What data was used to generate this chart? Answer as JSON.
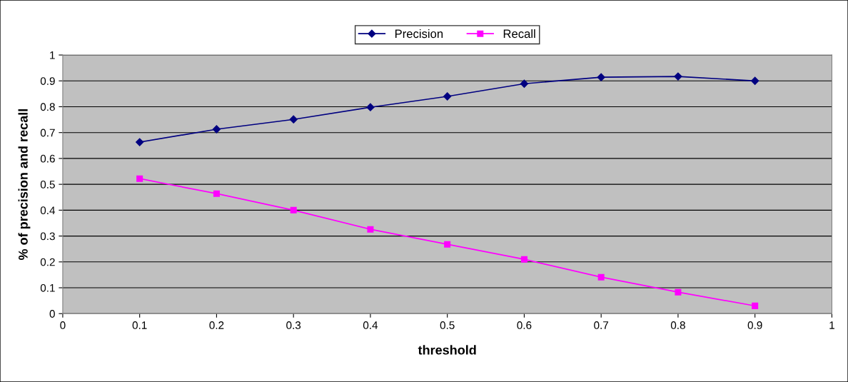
{
  "chart_data": {
    "type": "line",
    "xlabel": "threshold",
    "ylabel": "% of precision and recall",
    "x": [
      0.1,
      0.2,
      0.3,
      0.4,
      0.5,
      0.6,
      0.7,
      0.8,
      0.9
    ],
    "series": [
      {
        "name": "Precision",
        "color": "#000080",
        "marker": "diamond",
        "values": [
          0.663,
          0.713,
          0.751,
          0.798,
          0.84,
          0.889,
          0.914,
          0.917,
          0.9
        ]
      },
      {
        "name": "Recall",
        "color": "#ff00ff",
        "marker": "square",
        "values": [
          0.522,
          0.464,
          0.4,
          0.326,
          0.268,
          0.21,
          0.141,
          0.083,
          0.03
        ]
      }
    ],
    "xlim": [
      0,
      1
    ],
    "xticks": [
      0,
      0.1,
      0.2,
      0.3,
      0.4,
      0.5,
      0.6,
      0.7,
      0.8,
      0.9,
      1
    ],
    "ylim": [
      0,
      1
    ],
    "yticks": [
      0,
      0.1,
      0.2,
      0.3,
      0.4,
      0.5,
      0.6,
      0.7,
      0.8,
      0.9,
      1
    ],
    "grid": "y",
    "legend": "top",
    "line_style": "solid"
  }
}
